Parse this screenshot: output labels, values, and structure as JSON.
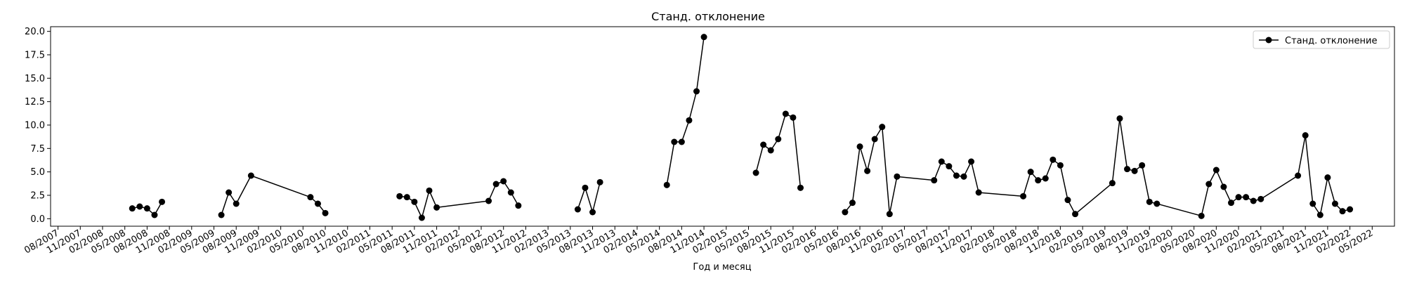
{
  "chart_data": {
    "type": "line",
    "title": "Станд. отклонение",
    "xlabel": "Год и месяц",
    "ylabel": "",
    "ylim": [
      -0.8,
      20.5
    ],
    "xlim": [
      "2007-07",
      "2022-08"
    ],
    "yticks": [
      0.0,
      2.5,
      5.0,
      7.5,
      10.0,
      12.5,
      15.0,
      17.5,
      20.0
    ],
    "ytick_labels": [
      "0.0",
      "2.5",
      "5.0",
      "7.5",
      "10.0",
      "12.5",
      "15.0",
      "17.5",
      "20.0"
    ],
    "xticks": [
      "2007-08",
      "2007-11",
      "2008-02",
      "2008-05",
      "2008-08",
      "2008-11",
      "2009-02",
      "2009-05",
      "2009-08",
      "2009-11",
      "2010-02",
      "2010-05",
      "2010-08",
      "2010-11",
      "2011-02",
      "2011-05",
      "2011-08",
      "2011-11",
      "2012-02",
      "2012-05",
      "2012-08",
      "2012-11",
      "2013-02",
      "2013-05",
      "2013-08",
      "2013-11",
      "2014-02",
      "2014-05",
      "2014-08",
      "2014-11",
      "2015-02",
      "2015-05",
      "2015-08",
      "2015-11",
      "2016-02",
      "2016-05",
      "2016-08",
      "2016-11",
      "2017-02",
      "2017-05",
      "2017-08",
      "2017-11",
      "2018-02",
      "2018-05",
      "2018-08",
      "2018-11",
      "2019-02",
      "2019-05",
      "2019-08",
      "2019-11",
      "2020-02",
      "2020-05",
      "2020-08",
      "2020-11",
      "2021-02",
      "2021-05",
      "2021-08",
      "2021-11",
      "2022-02",
      "2022-05"
    ],
    "xtick_labels": [
      "08/2007",
      "11/2007",
      "02/2008",
      "05/2008",
      "08/2008",
      "11/2008",
      "02/2009",
      "05/2009",
      "08/2009",
      "11/2009",
      "02/2010",
      "05/2010",
      "08/2010",
      "11/2010",
      "02/2011",
      "05/2011",
      "08/2011",
      "11/2011",
      "02/2012",
      "05/2012",
      "08/2012",
      "11/2012",
      "02/2013",
      "05/2013",
      "08/2013",
      "11/2013",
      "02/2014",
      "05/2014",
      "08/2014",
      "11/2014",
      "02/2015",
      "05/2015",
      "08/2015",
      "11/2015",
      "02/2016",
      "05/2016",
      "08/2016",
      "11/2016",
      "02/2017",
      "05/2017",
      "08/2017",
      "11/2017",
      "02/2018",
      "05/2018",
      "08/2018",
      "11/2018",
      "02/2019",
      "05/2019",
      "08/2019",
      "11/2019",
      "02/2020",
      "05/2020",
      "08/2020",
      "11/2020",
      "02/2021",
      "05/2021",
      "08/2021",
      "11/2021",
      "02/2022",
      "05/2022"
    ],
    "grid": false,
    "legend_position": "top-right",
    "color": "#000000",
    "series": [
      {
        "name": "Станд. отклонение",
        "marker": "circle",
        "segments": [
          [
            {
              "x": "2008-06",
              "y": 1.1
            },
            {
              "x": "2008-07",
              "y": 1.3
            },
            {
              "x": "2008-08",
              "y": 1.1
            },
            {
              "x": "2008-09",
              "y": 0.4
            },
            {
              "x": "2008-10",
              "y": 1.8
            }
          ],
          [
            {
              "x": "2009-06",
              "y": 0.4
            },
            {
              "x": "2009-07",
              "y": 2.8
            },
            {
              "x": "2009-08",
              "y": 1.6
            },
            {
              "x": "2009-10",
              "y": 4.6
            },
            {
              "x": "2010-06",
              "y": 2.3
            },
            {
              "x": "2010-07",
              "y": 1.6
            },
            {
              "x": "2010-08",
              "y": 0.6
            }
          ],
          [
            {
              "x": "2011-06",
              "y": 2.4
            },
            {
              "x": "2011-07",
              "y": 2.3
            },
            {
              "x": "2011-08",
              "y": 1.8
            },
            {
              "x": "2011-09",
              "y": 0.1
            },
            {
              "x": "2011-10",
              "y": 3.0
            },
            {
              "x": "2011-11",
              "y": 1.2
            },
            {
              "x": "2012-06",
              "y": 1.9
            },
            {
              "x": "2012-07",
              "y": 3.7
            },
            {
              "x": "2012-08",
              "y": 4.0
            },
            {
              "x": "2012-09",
              "y": 2.8
            },
            {
              "x": "2012-10",
              "y": 1.4
            }
          ],
          [
            {
              "x": "2013-06",
              "y": 1.0
            },
            {
              "x": "2013-07",
              "y": 3.3
            },
            {
              "x": "2013-08",
              "y": 0.7
            },
            {
              "x": "2013-09",
              "y": 3.9
            }
          ],
          [
            {
              "x": "2014-06",
              "y": 3.6
            },
            {
              "x": "2014-07",
              "y": 8.2
            },
            {
              "x": "2014-08",
              "y": 8.2
            },
            {
              "x": "2014-09",
              "y": 10.5
            },
            {
              "x": "2014-10",
              "y": 13.6
            },
            {
              "x": "2014-11",
              "y": 19.4
            }
          ],
          [
            {
              "x": "2015-06",
              "y": 4.9
            },
            {
              "x": "2015-07",
              "y": 7.9
            },
            {
              "x": "2015-08",
              "y": 7.3
            },
            {
              "x": "2015-09",
              "y": 8.5
            },
            {
              "x": "2015-10",
              "y": 11.2
            },
            {
              "x": "2015-11",
              "y": 10.8
            },
            {
              "x": "2015-12",
              "y": 3.3
            }
          ],
          [
            {
              "x": "2016-06",
              "y": 0.7
            },
            {
              "x": "2016-07",
              "y": 1.7
            },
            {
              "x": "2016-08",
              "y": 7.7
            },
            {
              "x": "2016-09",
              "y": 5.1
            },
            {
              "x": "2016-10",
              "y": 8.5
            },
            {
              "x": "2016-11",
              "y": 9.8
            },
            {
              "x": "2016-12",
              "y": 0.5
            },
            {
              "x": "2017-01",
              "y": 4.5
            },
            {
              "x": "2017-06",
              "y": 4.1
            },
            {
              "x": "2017-07",
              "y": 6.1
            },
            {
              "x": "2017-08",
              "y": 5.6
            },
            {
              "x": "2017-09",
              "y": 4.6
            },
            {
              "x": "2017-10",
              "y": 4.5
            },
            {
              "x": "2017-11",
              "y": 6.1
            },
            {
              "x": "2017-12",
              "y": 2.8
            },
            {
              "x": "2018-06",
              "y": 2.4
            },
            {
              "x": "2018-07",
              "y": 5.0
            },
            {
              "x": "2018-08",
              "y": 4.1
            },
            {
              "x": "2018-09",
              "y": 4.3
            },
            {
              "x": "2018-10",
              "y": 6.3
            },
            {
              "x": "2018-11",
              "y": 5.7
            },
            {
              "x": "2018-12",
              "y": 2.0
            },
            {
              "x": "2019-01",
              "y": 0.5
            },
            {
              "x": "2019-06",
              "y": 3.8
            },
            {
              "x": "2019-07",
              "y": 10.7
            },
            {
              "x": "2019-08",
              "y": 5.3
            },
            {
              "x": "2019-09",
              "y": 5.1
            },
            {
              "x": "2019-10",
              "y": 5.7
            },
            {
              "x": "2019-11",
              "y": 1.8
            },
            {
              "x": "2019-12",
              "y": 1.6
            },
            {
              "x": "2020-06",
              "y": 0.3
            },
            {
              "x": "2020-07",
              "y": 3.7
            },
            {
              "x": "2020-08",
              "y": 5.2
            },
            {
              "x": "2020-09",
              "y": 3.4
            },
            {
              "x": "2020-10",
              "y": 1.7
            },
            {
              "x": "2020-11",
              "y": 2.3
            },
            {
              "x": "2020-12",
              "y": 2.3
            },
            {
              "x": "2021-01",
              "y": 1.9
            },
            {
              "x": "2021-02",
              "y": 2.1
            },
            {
              "x": "2021-07",
              "y": 4.6
            },
            {
              "x": "2021-08",
              "y": 8.9
            },
            {
              "x": "2021-09",
              "y": 1.6
            },
            {
              "x": "2021-10",
              "y": 0.4
            },
            {
              "x": "2021-11",
              "y": 4.4
            },
            {
              "x": "2021-12",
              "y": 1.6
            },
            {
              "x": "2022-01",
              "y": 0.8
            },
            {
              "x": "2022-02",
              "y": 1.0
            }
          ]
        ]
      }
    ]
  }
}
